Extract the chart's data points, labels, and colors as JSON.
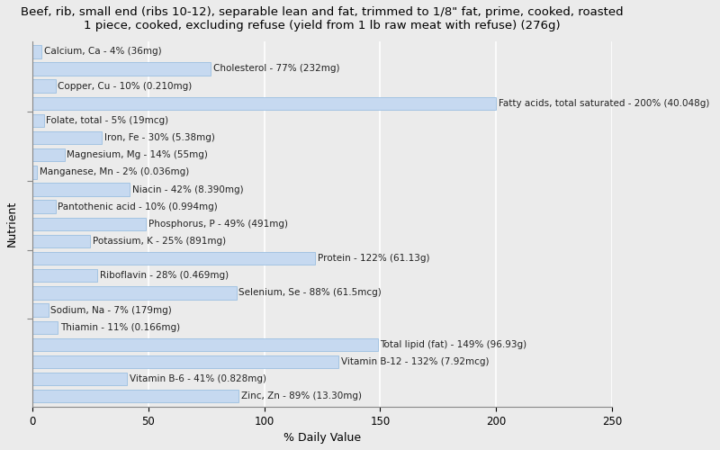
{
  "title": "Beef, rib, small end (ribs 10-12), separable lean and fat, trimmed to 1/8\" fat, prime, cooked, roasted\n1 piece, cooked, excluding refuse (yield from 1 lb raw meat with refuse) (276g)",
  "xlabel": "% Daily Value",
  "ylabel": "Nutrient",
  "xlim": [
    0,
    250
  ],
  "xticks": [
    0,
    50,
    100,
    150,
    200,
    250
  ],
  "bar_color": "#c6d9f0",
  "bar_edge_color": "#9abfe0",
  "background_color": "#ebebeb",
  "grid_color": "#ffffff",
  "text_color": "#222222",
  "nutrients": [
    {
      "label": "Calcium, Ca - 4% (36mg)",
      "value": 4
    },
    {
      "label": "Cholesterol - 77% (232mg)",
      "value": 77
    },
    {
      "label": "Copper, Cu - 10% (0.210mg)",
      "value": 10
    },
    {
      "label": "Fatty acids, total saturated - 200% (40.048g)",
      "value": 200
    },
    {
      "label": "Folate, total - 5% (19mcg)",
      "value": 5
    },
    {
      "label": "Iron, Fe - 30% (5.38mg)",
      "value": 30
    },
    {
      "label": "Magnesium, Mg - 14% (55mg)",
      "value": 14
    },
    {
      "label": "Manganese, Mn - 2% (0.036mg)",
      "value": 2
    },
    {
      "label": "Niacin - 42% (8.390mg)",
      "value": 42
    },
    {
      "label": "Pantothenic acid - 10% (0.994mg)",
      "value": 10
    },
    {
      "label": "Phosphorus, P - 49% (491mg)",
      "value": 49
    },
    {
      "label": "Potassium, K - 25% (891mg)",
      "value": 25
    },
    {
      "label": "Protein - 122% (61.13g)",
      "value": 122
    },
    {
      "label": "Riboflavin - 28% (0.469mg)",
      "value": 28
    },
    {
      "label": "Selenium, Se - 88% (61.5mcg)",
      "value": 88
    },
    {
      "label": "Sodium, Na - 7% (179mg)",
      "value": 7
    },
    {
      "label": "Thiamin - 11% (0.166mg)",
      "value": 11
    },
    {
      "label": "Total lipid (fat) - 149% (96.93g)",
      "value": 149
    },
    {
      "label": "Vitamin B-12 - 132% (7.92mcg)",
      "value": 132
    },
    {
      "label": "Vitamin B-6 - 41% (0.828mg)",
      "value": 41
    },
    {
      "label": "Zinc, Zn - 89% (13.30mg)",
      "value": 89
    }
  ],
  "title_fontsize": 9.5,
  "label_fontsize": 7.5,
  "axis_label_fontsize": 9,
  "tick_fontsize": 8.5
}
